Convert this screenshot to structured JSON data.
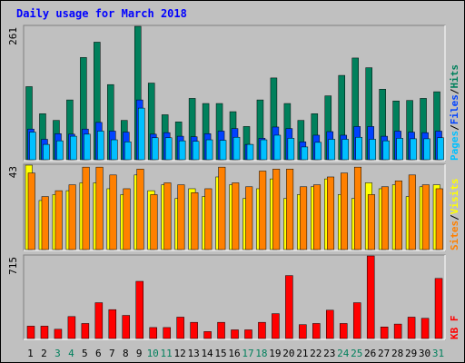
{
  "title": "Daily usage for March 2018",
  "colors": {
    "background": "#c0c0c0",
    "title": "#0000ff",
    "hits": "#00805c",
    "files": "#0042ff",
    "pages": "#00c0ff",
    "visits": "#ff8000",
    "sites": "#ffff00",
    "kbf": "#ff0000",
    "weekend_label": "#00805c",
    "weekday_label": "#000000"
  },
  "chart_data": [
    {
      "type": "bar",
      "name": "hits-files-pages",
      "ymax_label": "261",
      "ylim": [
        0,
        261
      ],
      "legend": [
        {
          "text": "Pages",
          "color": "#00c0ff"
        },
        {
          "text": "/",
          "color": "#000000"
        },
        {
          "text": "Files",
          "color": "#0042ff"
        },
        {
          "text": "/",
          "color": "#000000"
        },
        {
          "text": "Hits",
          "color": "#00805c"
        }
      ],
      "series": [
        {
          "name": "Hits",
          "values": [
            143,
            90,
            77,
            117,
            200,
            230,
            147,
            77,
            261,
            150,
            88,
            74,
            120,
            110,
            110,
            94,
            65,
            117,
            160,
            110,
            77,
            90,
            125,
            165,
            199,
            180,
            138,
            115,
            116,
            120,
            133
          ]
        },
        {
          "name": "Files",
          "values": [
            60,
            40,
            51,
            50,
            60,
            73,
            56,
            54,
            117,
            50,
            53,
            46,
            45,
            51,
            56,
            61,
            30,
            42,
            64,
            61,
            35,
            48,
            55,
            48,
            65,
            65,
            46,
            56,
            54,
            53,
            56
          ]
        },
        {
          "name": "Pages",
          "values": [
            54,
            30,
            37,
            46,
            50,
            56,
            39,
            35,
            101,
            43,
            43,
            37,
            36,
            39,
            38,
            44,
            30,
            39,
            48,
            42,
            25,
            34,
            40,
            40,
            44,
            40,
            37,
            42,
            41,
            41,
            43
          ]
        }
      ]
    },
    {
      "type": "bar",
      "name": "visits-sites",
      "ymax_label": "43",
      "ylim": [
        0,
        43
      ],
      "legend": [
        {
          "text": "Sites",
          "color": "#ff8000"
        },
        {
          "text": "/",
          "color": "#000000"
        },
        {
          "text": "Visits",
          "color": "#ffff00"
        }
      ],
      "series": [
        {
          "name": "Visits",
          "values": [
            43,
            25,
            28,
            30,
            34,
            34,
            31,
            28,
            38,
            30,
            33,
            26,
            31,
            27,
            37,
            33,
            26,
            31,
            36,
            26,
            28,
            32,
            36,
            28,
            26,
            34,
            31,
            33,
            27,
            32,
            33
          ]
        },
        {
          "name": "Sites",
          "values": [
            39,
            27,
            30,
            33,
            42,
            42,
            38,
            31,
            41,
            28,
            34,
            33,
            29,
            31,
            42,
            34,
            32,
            40,
            41,
            41,
            32,
            33,
            37,
            39,
            42,
            28,
            32,
            35,
            38,
            33,
            31
          ]
        }
      ]
    },
    {
      "type": "bar",
      "name": "kb-f",
      "ymax_label": "715",
      "ylim": [
        0,
        715
      ],
      "legend": [
        {
          "text": "KB F",
          "color": "#ff0000"
        }
      ],
      "series": [
        {
          "name": "KB F",
          "values": [
            107,
            107,
            80,
            190,
            130,
            310,
            250,
            200,
            495,
            95,
            95,
            185,
            140,
            60,
            140,
            75,
            75,
            140,
            215,
            545,
            120,
            130,
            245,
            130,
            310,
            715,
            100,
            125,
            185,
            175,
            520
          ]
        }
      ]
    }
  ],
  "x_labels": [
    "1",
    "2",
    "3",
    "4",
    "5",
    "6",
    "7",
    "8",
    "9",
    "10",
    "11",
    "12",
    "13",
    "14",
    "15",
    "16",
    "17",
    "18",
    "19",
    "20",
    "21",
    "22",
    "23",
    "24",
    "25",
    "26",
    "27",
    "28",
    "29",
    "30",
    "31"
  ],
  "weekend_days": [
    3,
    4,
    10,
    11,
    17,
    18,
    24,
    25,
    31
  ]
}
